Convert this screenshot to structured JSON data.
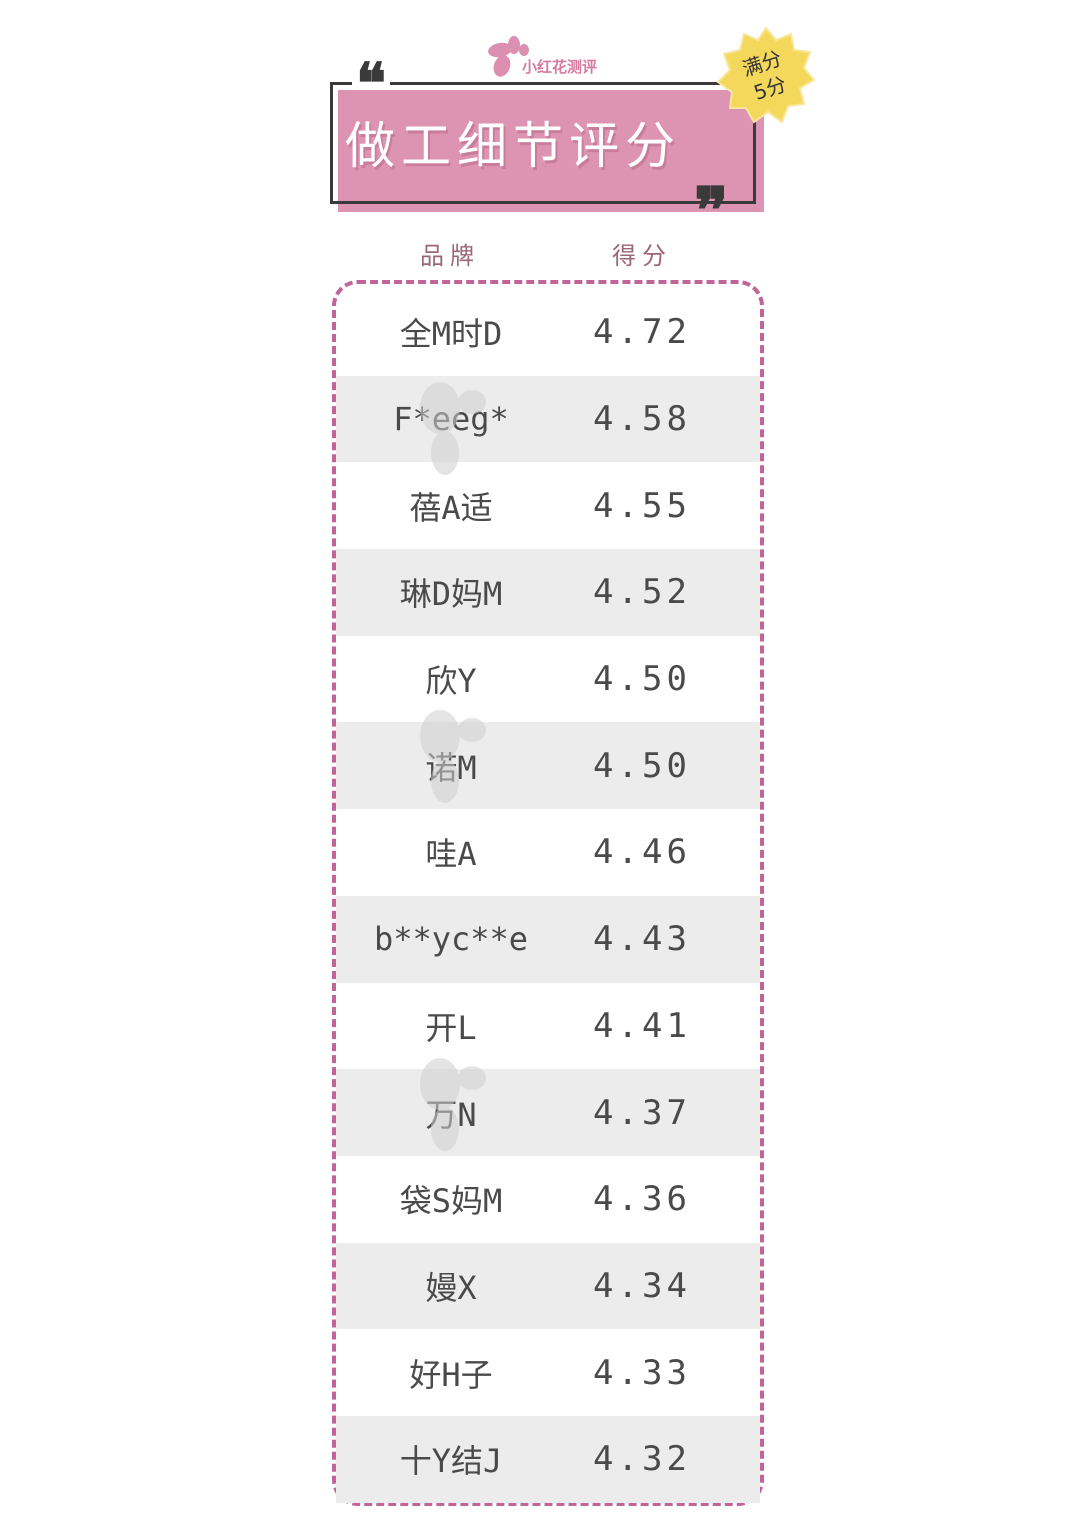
{
  "logo": {
    "text": "小红花测评",
    "color": "#d77aa0"
  },
  "title": {
    "text": "做工细节评分",
    "open_quote": "❝",
    "close_quote": "❞",
    "bg_color": "#dd93b2"
  },
  "badge": {
    "line1": "满分",
    "line2": "5分",
    "color": "#f3d85c"
  },
  "table": {
    "headers": {
      "brand": "品牌",
      "score": "得分"
    },
    "border_color": "#c0649a",
    "rows": [
      {
        "brand": "全M时D",
        "score": "4.72"
      },
      {
        "brand": "F*eeg*",
        "score": "4.58"
      },
      {
        "brand": "蓓A适",
        "score": "4.55"
      },
      {
        "brand": "琳D妈M",
        "score": "4.52"
      },
      {
        "brand": "欣Y",
        "score": "4.50"
      },
      {
        "brand": "诺M",
        "score": "4.50"
      },
      {
        "brand": "哇A",
        "score": "4.46"
      },
      {
        "brand": "b**yc**e",
        "score": "4.43"
      },
      {
        "brand": "开L",
        "score": "4.41"
      },
      {
        "brand": "万N",
        "score": "4.37"
      },
      {
        "brand": "袋S妈M",
        "score": "4.36"
      },
      {
        "brand": "嫚X",
        "score": "4.34"
      },
      {
        "brand": "好H子",
        "score": "4.33"
      },
      {
        "brand": "十Y结J",
        "score": "4.32"
      }
    ]
  },
  "watermark": {
    "text": "小红花测评"
  }
}
